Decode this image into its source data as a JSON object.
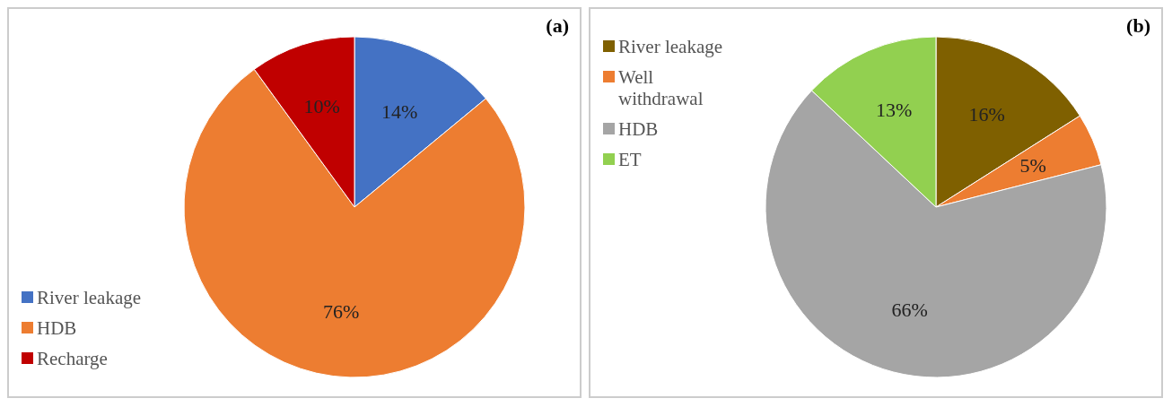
{
  "chart_data": [
    {
      "type": "pie",
      "title": "(a)",
      "categories": [
        "River leakage",
        "HDB",
        "Recharge"
      ],
      "values": [
        14,
        76,
        10
      ],
      "colors": [
        "#4472c4",
        "#ed7d31",
        "#c00000"
      ],
      "value_labels": [
        "14%",
        "76%",
        "10%"
      ],
      "legend": "bottom left"
    },
    {
      "type": "pie",
      "title": "(b)",
      "categories": [
        "River leakage",
        "Well withdrawal",
        "HDB",
        "ET"
      ],
      "values": [
        16,
        5,
        66,
        13
      ],
      "colors": [
        "#7f6000",
        "#ed7d31",
        "#a5a5a5",
        "#92d050"
      ],
      "value_labels": [
        "16%",
        "5%",
        "66%",
        "13%"
      ],
      "legend": "top left"
    }
  ]
}
